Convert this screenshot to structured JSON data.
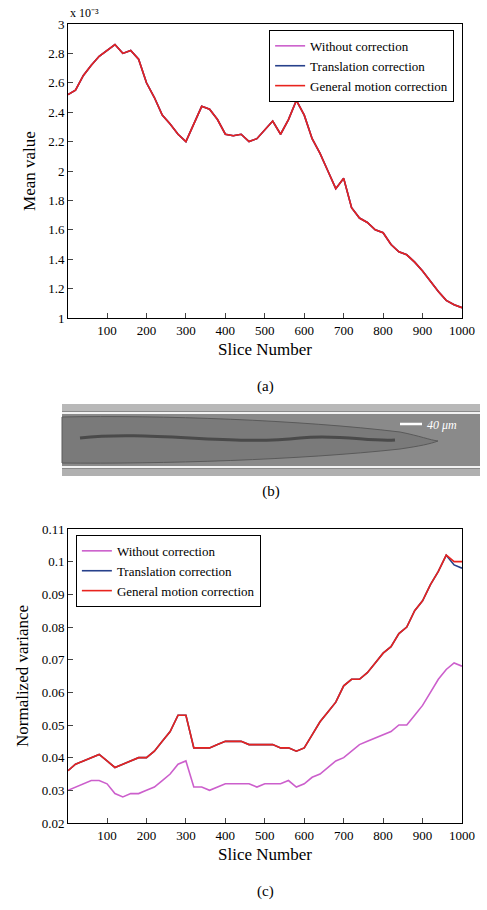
{
  "chart_data": [
    {
      "type": "line",
      "caption": "(a)",
      "x_label": "Slice Number",
      "y_label": "Mean value",
      "annotations": [
        "x 10⁻³"
      ],
      "x": [
        1,
        20,
        40,
        60,
        80,
        100,
        120,
        140,
        160,
        180,
        200,
        220,
        240,
        260,
        280,
        300,
        320,
        340,
        360,
        380,
        400,
        420,
        440,
        460,
        480,
        500,
        520,
        540,
        560,
        580,
        600,
        620,
        640,
        660,
        680,
        700,
        720,
        740,
        760,
        780,
        800,
        820,
        840,
        860,
        880,
        900,
        920,
        940,
        960,
        980,
        1000
      ],
      "series": [
        {
          "name": "Without correction",
          "color": "#cc5fcc",
          "values": [
            0.00252,
            0.00255,
            0.00265,
            0.00272,
            0.00278,
            0.00282,
            0.00286,
            0.0028,
            0.00282,
            0.00276,
            0.0026,
            0.0025,
            0.00238,
            0.00232,
            0.00225,
            0.0022,
            0.00232,
            0.00244,
            0.00242,
            0.00235,
            0.00225,
            0.00224,
            0.00225,
            0.0022,
            0.00222,
            0.00228,
            0.00234,
            0.00225,
            0.00235,
            0.00248,
            0.00238,
            0.00222,
            0.00212,
            0.002,
            0.00188,
            0.00195,
            0.00175,
            0.00168,
            0.00165,
            0.0016,
            0.00158,
            0.0015,
            0.00145,
            0.00143,
            0.00138,
            0.00132,
            0.00125,
            0.00118,
            0.00112,
            0.00109,
            0.00107
          ]
        },
        {
          "name": "Translation correction",
          "color": "#27408b",
          "values": [
            0.00252,
            0.00255,
            0.00265,
            0.00272,
            0.00278,
            0.00282,
            0.00286,
            0.0028,
            0.00282,
            0.00276,
            0.0026,
            0.0025,
            0.00238,
            0.00232,
            0.00225,
            0.0022,
            0.00232,
            0.00244,
            0.00242,
            0.00235,
            0.00225,
            0.00224,
            0.00225,
            0.0022,
            0.00222,
            0.00228,
            0.00234,
            0.00225,
            0.00235,
            0.00248,
            0.00238,
            0.00222,
            0.00212,
            0.002,
            0.00188,
            0.00195,
            0.00175,
            0.00168,
            0.00165,
            0.0016,
            0.00158,
            0.0015,
            0.00145,
            0.00143,
            0.00138,
            0.00132,
            0.00125,
            0.00118,
            0.00112,
            0.00109,
            0.00107
          ]
        },
        {
          "name": "General motion correction",
          "color": "#e8231e",
          "values": [
            0.00252,
            0.00255,
            0.00265,
            0.00272,
            0.00278,
            0.00282,
            0.00286,
            0.0028,
            0.00282,
            0.00276,
            0.0026,
            0.0025,
            0.00238,
            0.00232,
            0.00225,
            0.0022,
            0.00232,
            0.00244,
            0.00242,
            0.00235,
            0.00225,
            0.00224,
            0.00225,
            0.0022,
            0.00222,
            0.00228,
            0.00234,
            0.00225,
            0.00235,
            0.00248,
            0.00238,
            0.00222,
            0.00212,
            0.002,
            0.00188,
            0.00195,
            0.00175,
            0.00168,
            0.00165,
            0.0016,
            0.00158,
            0.0015,
            0.00145,
            0.00143,
            0.00138,
            0.00132,
            0.00125,
            0.00118,
            0.00112,
            0.00109,
            0.00107
          ]
        }
      ],
      "xlim": [
        1,
        1000
      ],
      "xticks": [
        100,
        200,
        300,
        400,
        500,
        600,
        700,
        800,
        900,
        1000
      ],
      "ylim": [
        0.001,
        0.003
      ],
      "yticks": [
        {
          "value": 0.001,
          "label": "1"
        },
        {
          "value": 0.0012,
          "label": "1.2"
        },
        {
          "value": 0.0014,
          "label": "1.4"
        },
        {
          "value": 0.0016,
          "label": "1.6"
        },
        {
          "value": 0.0018,
          "label": "1.8"
        },
        {
          "value": 0.002,
          "label": "2"
        },
        {
          "value": 0.0022,
          "label": "2.2"
        },
        {
          "value": 0.0024,
          "label": "2.4"
        },
        {
          "value": 0.0026,
          "label": "2.6"
        },
        {
          "value": 0.0028,
          "label": "2.8"
        },
        {
          "value": 0.003,
          "label": "3"
        }
      ],
      "grid": false,
      "legend": "top right"
    },
    {
      "type": "line",
      "caption": "(c)",
      "x_label": "Slice Number",
      "y_label": "Normalized variance",
      "x": [
        1,
        20,
        40,
        60,
        80,
        100,
        120,
        140,
        160,
        180,
        200,
        220,
        240,
        260,
        280,
        300,
        320,
        340,
        360,
        380,
        400,
        420,
        440,
        460,
        480,
        500,
        520,
        540,
        560,
        580,
        600,
        620,
        640,
        660,
        680,
        700,
        720,
        740,
        760,
        780,
        800,
        820,
        840,
        860,
        880,
        900,
        920,
        940,
        960,
        980,
        1000
      ],
      "series": [
        {
          "name": "Without correction",
          "color": "#cc5fcc",
          "values": [
            0.03,
            0.031,
            0.032,
            0.033,
            0.033,
            0.032,
            0.029,
            0.028,
            0.029,
            0.029,
            0.03,
            0.031,
            0.033,
            0.035,
            0.038,
            0.039,
            0.031,
            0.031,
            0.03,
            0.031,
            0.032,
            0.032,
            0.032,
            0.032,
            0.031,
            0.032,
            0.032,
            0.032,
            0.033,
            0.031,
            0.032,
            0.034,
            0.035,
            0.037,
            0.039,
            0.04,
            0.042,
            0.044,
            0.045,
            0.046,
            0.047,
            0.048,
            0.05,
            0.05,
            0.053,
            0.056,
            0.06,
            0.064,
            0.067,
            0.069,
            0.068
          ]
        },
        {
          "name": "Translation correction",
          "color": "#27408b",
          "values": [
            0.036,
            0.038,
            0.039,
            0.04,
            0.041,
            0.039,
            0.037,
            0.038,
            0.039,
            0.04,
            0.04,
            0.042,
            0.045,
            0.048,
            0.053,
            0.053,
            0.043,
            0.043,
            0.043,
            0.044,
            0.045,
            0.045,
            0.045,
            0.044,
            0.044,
            0.044,
            0.044,
            0.043,
            0.043,
            0.042,
            0.043,
            0.047,
            0.051,
            0.054,
            0.057,
            0.062,
            0.064,
            0.064,
            0.066,
            0.069,
            0.072,
            0.074,
            0.078,
            0.08,
            0.085,
            0.088,
            0.093,
            0.097,
            0.102,
            0.099,
            0.098
          ]
        },
        {
          "name": "General motion correction",
          "color": "#e8231e",
          "values": [
            0.036,
            0.038,
            0.039,
            0.04,
            0.041,
            0.039,
            0.037,
            0.038,
            0.039,
            0.04,
            0.04,
            0.042,
            0.045,
            0.048,
            0.053,
            0.053,
            0.043,
            0.043,
            0.043,
            0.044,
            0.045,
            0.045,
            0.045,
            0.044,
            0.044,
            0.044,
            0.044,
            0.043,
            0.043,
            0.042,
            0.043,
            0.047,
            0.051,
            0.054,
            0.057,
            0.062,
            0.064,
            0.064,
            0.066,
            0.069,
            0.072,
            0.074,
            0.078,
            0.08,
            0.085,
            0.088,
            0.093,
            0.097,
            0.102,
            0.1,
            0.1
          ]
        }
      ],
      "xlim": [
        1,
        1000
      ],
      "xticks": [
        100,
        200,
        300,
        400,
        500,
        600,
        700,
        800,
        900,
        1000
      ],
      "ylim": [
        0.02,
        0.11
      ],
      "yticks": [
        0.02,
        0.03,
        0.04,
        0.05,
        0.06,
        0.07,
        0.08,
        0.09,
        0.1,
        0.11
      ],
      "grid": false,
      "legend": "top left"
    }
  ],
  "image_panel": {
    "caption": "(b)",
    "scale_bar": "40 μm"
  }
}
